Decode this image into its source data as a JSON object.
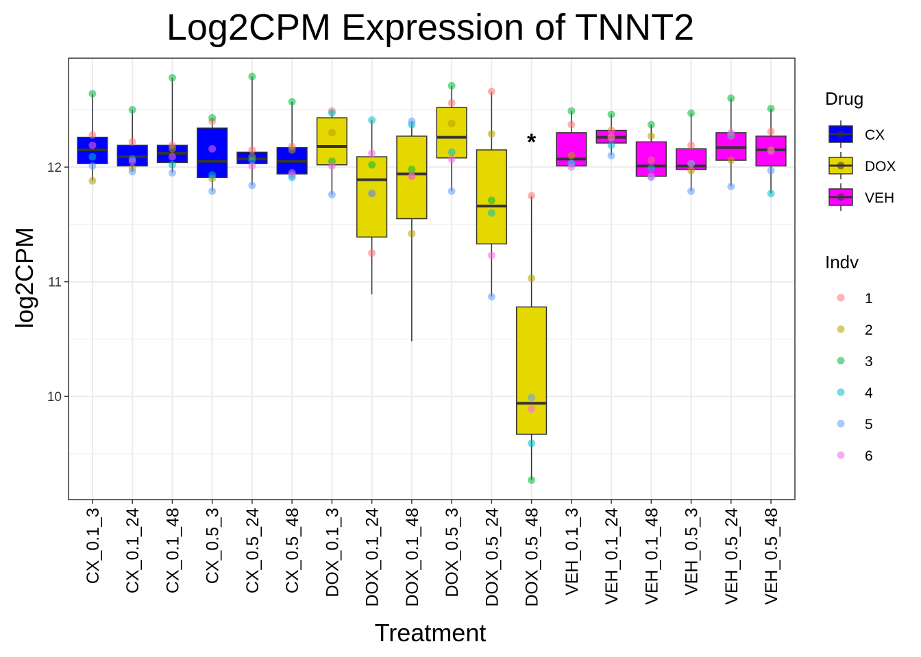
{
  "chart_data": {
    "type": "boxplot",
    "title": "Log2CPM Expression of TNNT2",
    "xlabel": "Treatment",
    "ylabel": "log2CPM",
    "ylim": [
      9.1,
      12.95
    ],
    "yticks": [
      10,
      11,
      12
    ],
    "y_minor_ticks": [
      9.5,
      10.5,
      11.5,
      12.5
    ],
    "grid": true,
    "categories": [
      "CX_0.1_3",
      "CX_0.1_24",
      "CX_0.1_48",
      "CX_0.5_3",
      "CX_0.5_24",
      "CX_0.5_48",
      "DOX_0.1_3",
      "DOX_0.1_24",
      "DOX_0.1_48",
      "DOX_0.5_3",
      "DOX_0.5_24",
      "DOX_0.5_48",
      "VEH_0.1_3",
      "VEH_0.1_24",
      "VEH_0.1_48",
      "VEH_0.5_3",
      "VEH_0.5_24",
      "VEH_0.5_48"
    ],
    "drug_colors": {
      "CX": "#0000FF",
      "DOX": "#E5D700",
      "VEH": "#FF00FF"
    },
    "indv_colors": {
      "1": "#F8766D",
      "2": "#B79F00",
      "3": "#00BA38",
      "4": "#00BFC4",
      "5": "#619CFF",
      "6": "#F564E3"
    },
    "boxes": [
      {
        "drug": "CX",
        "whisker_low": 11.88,
        "q1": 12.03,
        "median": 12.15,
        "q3": 12.26,
        "whisker_high": 12.64
      },
      {
        "drug": "CX",
        "whisker_low": 11.96,
        "q1": 12.01,
        "median": 12.09,
        "q3": 12.19,
        "whisker_high": 12.5
      },
      {
        "drug": "CX",
        "whisker_low": 11.95,
        "q1": 12.04,
        "median": 12.12,
        "q3": 12.19,
        "whisker_high": 12.78
      },
      {
        "drug": "CX",
        "whisker_low": 11.79,
        "q1": 11.91,
        "median": 12.05,
        "q3": 12.34,
        "whisker_high": 12.43
      },
      {
        "drug": "CX",
        "whisker_low": 11.84,
        "q1": 12.03,
        "median": 12.07,
        "q3": 12.13,
        "whisker_high": 12.79
      },
      {
        "drug": "CX",
        "whisker_low": 11.91,
        "q1": 11.94,
        "median": 12.05,
        "q3": 12.17,
        "whisker_high": 12.57
      },
      {
        "drug": "DOX",
        "whisker_low": 11.76,
        "q1": 12.02,
        "median": 12.18,
        "q3": 12.43,
        "whisker_high": 12.5
      },
      {
        "drug": "DOX",
        "whisker_low": 10.89,
        "q1": 11.39,
        "median": 11.89,
        "q3": 12.09,
        "whisker_high": 12.41
      },
      {
        "drug": "DOX",
        "whisker_low": 10.48,
        "q1": 11.55,
        "median": 11.94,
        "q3": 12.27,
        "whisker_high": 12.4
      },
      {
        "drug": "DOX",
        "whisker_low": 11.79,
        "q1": 12.08,
        "median": 12.26,
        "q3": 12.52,
        "whisker_high": 12.71
      },
      {
        "drug": "DOX",
        "whisker_low": 10.87,
        "q1": 11.33,
        "median": 11.66,
        "q3": 12.15,
        "whisker_high": 12.66
      },
      {
        "drug": "DOX",
        "whisker_low": 9.27,
        "q1": 9.67,
        "median": 9.94,
        "q3": 10.78,
        "whisker_high": 11.75
      },
      {
        "drug": "VEH",
        "whisker_low": 12.0,
        "q1": 12.01,
        "median": 12.07,
        "q3": 12.3,
        "whisker_high": 12.49
      },
      {
        "drug": "VEH",
        "whisker_low": 12.1,
        "q1": 12.21,
        "median": 12.26,
        "q3": 12.32,
        "whisker_high": 12.46
      },
      {
        "drug": "VEH",
        "whisker_low": 11.91,
        "q1": 11.92,
        "median": 12.01,
        "q3": 12.22,
        "whisker_high": 12.37
      },
      {
        "drug": "VEH",
        "whisker_low": 11.79,
        "q1": 11.98,
        "median": 12.01,
        "q3": 12.16,
        "whisker_high": 12.47
      },
      {
        "drug": "VEH",
        "whisker_low": 11.83,
        "q1": 12.06,
        "median": 12.17,
        "q3": 12.3,
        "whisker_high": 12.6
      },
      {
        "drug": "VEH",
        "whisker_low": 11.77,
        "q1": 12.01,
        "median": 12.15,
        "q3": 12.27,
        "whisker_high": 12.51
      }
    ],
    "points": [
      [
        12.28,
        11.88,
        12.64,
        12.09,
        12.01,
        12.19
      ],
      [
        12.22,
        11.99,
        12.5,
        12.07,
        11.96,
        12.05
      ],
      [
        12.19,
        12.16,
        12.78,
        12.02,
        11.95,
        12.09
      ],
      [
        12.4,
        11.9,
        12.43,
        11.93,
        11.79,
        12.16
      ],
      [
        12.15,
        12.09,
        12.79,
        12.06,
        11.84,
        12.01
      ],
      [
        12.18,
        12.15,
        12.57,
        11.91,
        11.93,
        11.95
      ],
      [
        12.49,
        12.3,
        12.05,
        12.47,
        11.76,
        12.01
      ],
      [
        11.25,
        11.77,
        12.02,
        12.41,
        11.77,
        12.12
      ],
      [
        11.92,
        11.42,
        11.98,
        12.37,
        12.4,
        11.92
      ],
      [
        12.56,
        12.38,
        12.71,
        12.13,
        11.79,
        12.07
      ],
      [
        12.66,
        12.29,
        11.71,
        11.6,
        10.87,
        11.23
      ],
      [
        11.75,
        11.03,
        9.27,
        9.59,
        9.99,
        9.89
      ],
      [
        12.37,
        12.1,
        12.49,
        12.03,
        12.03,
        12.0
      ],
      [
        12.32,
        12.26,
        12.46,
        12.19,
        12.1,
        12.26
      ],
      [
        12.06,
        12.27,
        12.37,
        11.99,
        11.91,
        11.92
      ],
      [
        12.19,
        11.97,
        12.47,
        12.03,
        11.79,
        12.03
      ],
      [
        12.27,
        12.06,
        12.6,
        12.28,
        11.83,
        12.3
      ],
      [
        12.31,
        12.15,
        12.51,
        11.77,
        11.97,
        12.14
      ]
    ],
    "annotations": [
      {
        "category": "DOX_0.5_48",
        "y": 12.28,
        "text": "*"
      }
    ],
    "legend_drug": {
      "title": "Drug",
      "items": [
        "CX",
        "DOX",
        "VEH"
      ]
    },
    "legend_indv": {
      "title": "Indv",
      "items": [
        "1",
        "2",
        "3",
        "4",
        "5",
        "6"
      ]
    },
    "legend_position": "right"
  }
}
